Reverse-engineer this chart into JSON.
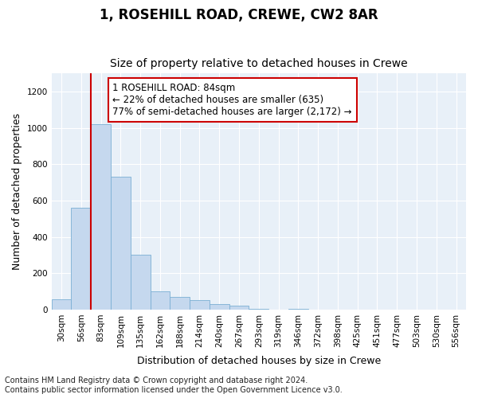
{
  "title": "1, ROSEHILL ROAD, CREWE, CW2 8AR",
  "subtitle": "Size of property relative to detached houses in Crewe",
  "xlabel": "Distribution of detached houses by size in Crewe",
  "ylabel": "Number of detached properties",
  "footnote": "Contains HM Land Registry data © Crown copyright and database right 2024.\nContains public sector information licensed under the Open Government Licence v3.0.",
  "categories": [
    "30sqm",
    "56sqm",
    "83sqm",
    "109sqm",
    "135sqm",
    "162sqm",
    "188sqm",
    "214sqm",
    "240sqm",
    "267sqm",
    "293sqm",
    "319sqm",
    "346sqm",
    "372sqm",
    "398sqm",
    "425sqm",
    "451sqm",
    "477sqm",
    "503sqm",
    "530sqm",
    "556sqm"
  ],
  "values": [
    55,
    560,
    1020,
    730,
    300,
    100,
    70,
    50,
    30,
    20,
    5,
    0,
    5,
    0,
    0,
    0,
    0,
    0,
    0,
    0,
    0
  ],
  "bar_color": "#c5d8ee",
  "bar_edge_color": "#7aafd4",
  "marker_bin_index": 2,
  "ylim": [
    0,
    1300
  ],
  "yticks": [
    0,
    200,
    400,
    600,
    800,
    1000,
    1200
  ],
  "annotation_line1": "1 ROSEHILL ROAD: 84sqm",
  "annotation_line2": "← 22% of detached houses are smaller (635)",
  "annotation_line3": "77% of semi-detached houses are larger (2,172) →",
  "annotation_box_color": "#ffffff",
  "annotation_box_edge_color": "#cc0000",
  "title_fontsize": 12,
  "subtitle_fontsize": 10,
  "axis_label_fontsize": 9,
  "tick_fontsize": 7.5,
  "annotation_fontsize": 8.5,
  "footnote_fontsize": 7,
  "background_color": "#ffffff",
  "plot_bg_color": "#e8f0f8"
}
